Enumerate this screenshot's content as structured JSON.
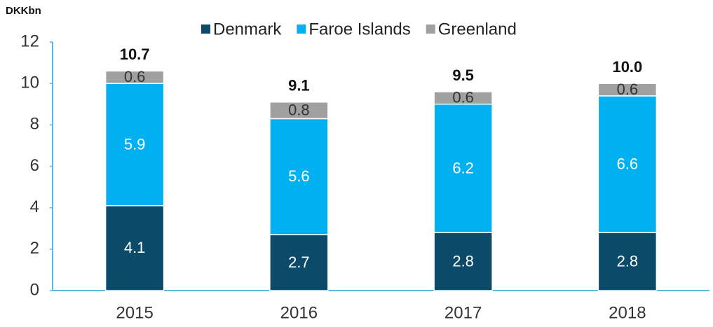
{
  "chart_data": {
    "type": "stacked_bar",
    "y_axis_label": "DKKbn",
    "categories": [
      "2015",
      "2016",
      "2017",
      "2018"
    ],
    "series": [
      {
        "name": "Denmark",
        "color": "#0c4a69",
        "label_color": "#ffffff",
        "values": [
          4.1,
          2.7,
          2.8,
          2.8
        ]
      },
      {
        "name": "Faroe Islands",
        "color": "#00b0f0",
        "label_color": "#ffffff",
        "values": [
          5.9,
          5.6,
          6.2,
          6.6
        ]
      },
      {
        "name": "Greenland",
        "color": "#a0a0a0",
        "label_color": "#333333",
        "values": [
          0.6,
          0.8,
          0.6,
          0.6
        ]
      }
    ],
    "totals": {
      "values": [
        10.7,
        9.1,
        9.5,
        10
      ],
      "value_labels": [
        "10.7",
        "9.1",
        "9.5",
        "10.0"
      ]
    },
    "ylim": [
      0,
      12
    ],
    "yticks": [
      0,
      2,
      4,
      6,
      8,
      10,
      12
    ],
    "grid": false,
    "legend": "top"
  }
}
